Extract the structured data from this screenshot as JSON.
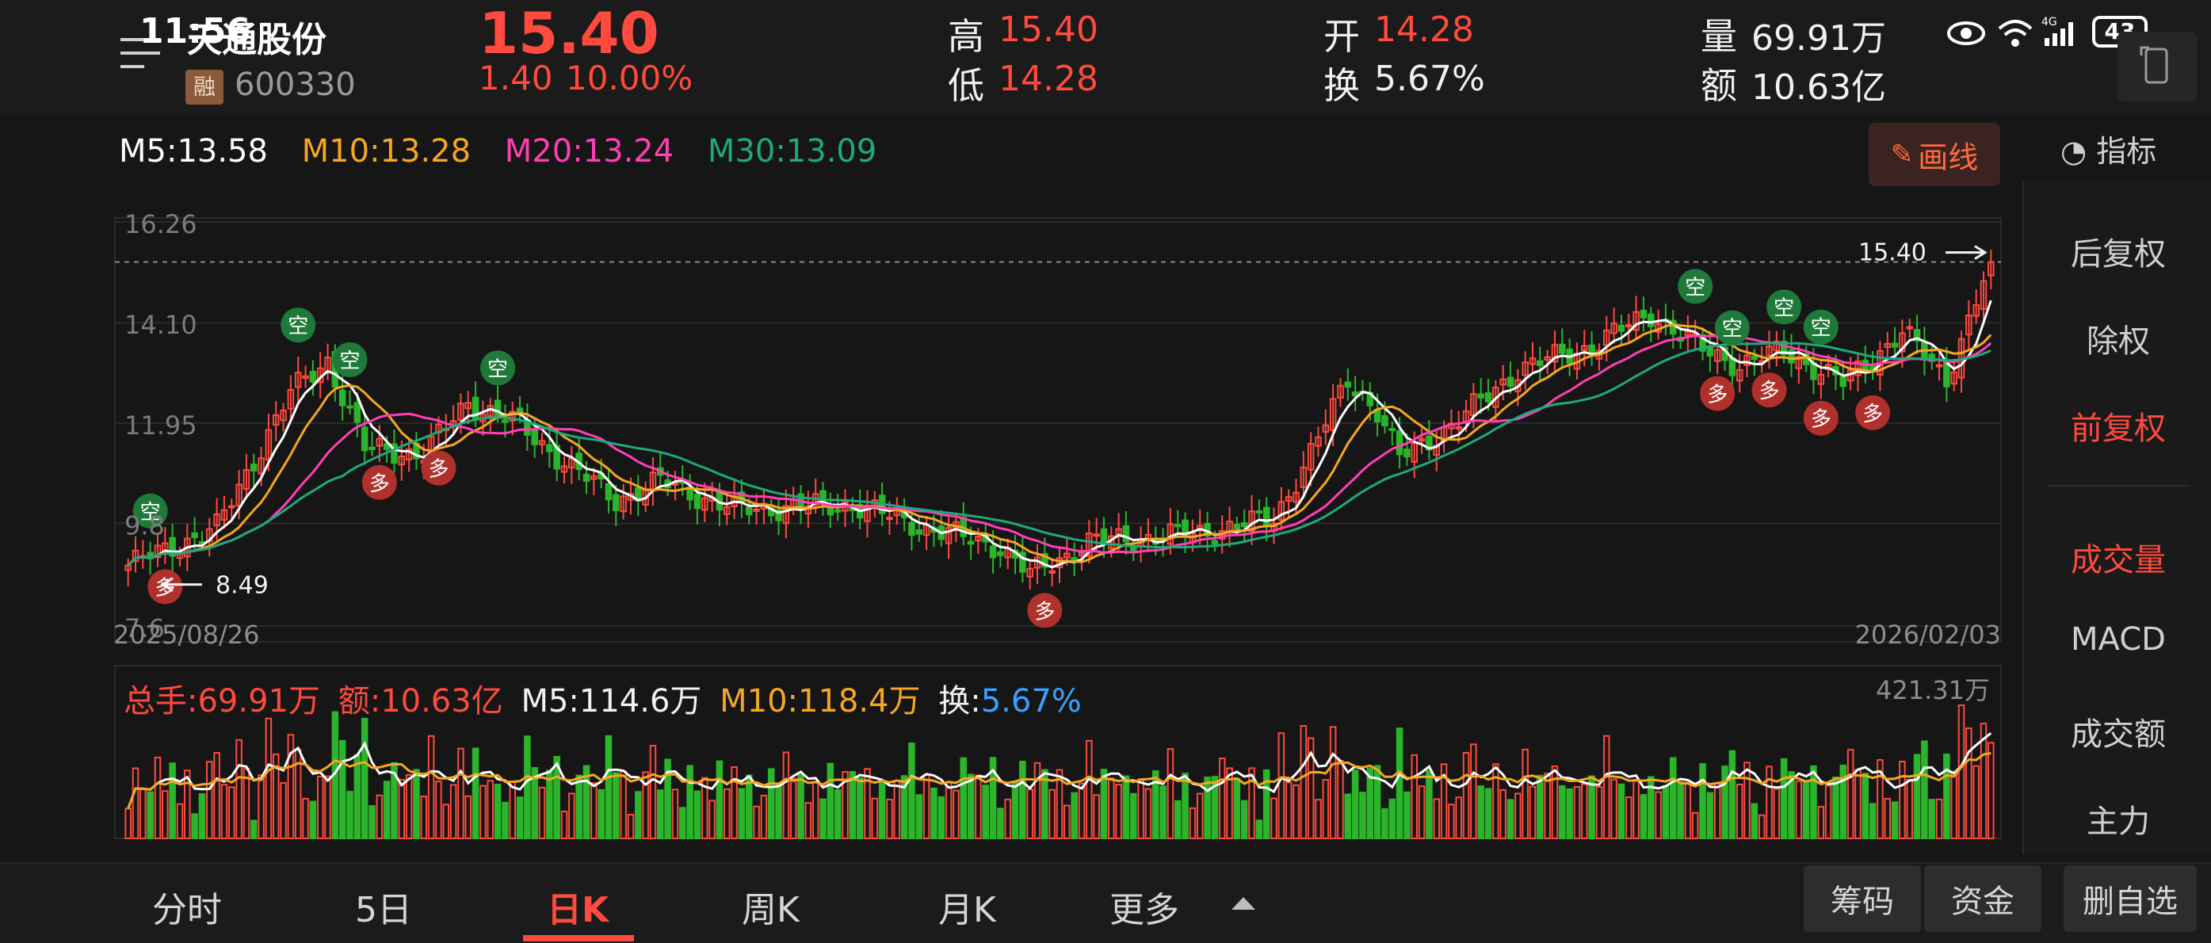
{
  "status_bar": {
    "time": "11:56",
    "battery": "43"
  },
  "stock": {
    "name": "天通股份",
    "margin_badge": "融",
    "code": "600330",
    "price": "15.40",
    "change": "1.40",
    "change_pct": "10.00%"
  },
  "quote": {
    "high_label": "高",
    "high": "15.40",
    "low_label": "低",
    "low": "14.28",
    "open_label": "开",
    "open": "14.28",
    "turnover_label": "换",
    "turnover": "5.67%",
    "volume_label": "量",
    "volume": "69.91万",
    "amount_label": "额",
    "amount": "10.63亿"
  },
  "ma": {
    "m5": "M5:13.58",
    "m10": "M10:13.28",
    "m20": "M20:13.24",
    "m30": "M30:13.09",
    "colors": {
      "m5": "#ffffff",
      "m10": "#f5a623",
      "m20": "#ff3fb4",
      "m30": "#1fa97a"
    }
  },
  "toolbar": {
    "draw_label": "画线",
    "indicator_label": "指标"
  },
  "right_panel": {
    "items": [
      {
        "label": "后复权",
        "active": false
      },
      {
        "label": "除权",
        "active": false
      },
      {
        "label": "前复权",
        "active": true
      },
      {
        "label": "成交量",
        "active": true
      },
      {
        "label": "MACD",
        "active": false
      },
      {
        "label": "成交额",
        "active": false
      },
      {
        "label": "主力",
        "active": false
      }
    ]
  },
  "chart_data": [
    {
      "type": "candlestick",
      "y_ticks": [
        "16.26",
        "14.10",
        "11.95",
        "9.8",
        "7.6"
      ],
      "ylim": [
        7.6,
        16.26
      ],
      "x_start": "2025/08/26",
      "x_end": "2026/02/03",
      "last_price_label": "15.40",
      "low_marker_label": "8.49",
      "signal_long": "多",
      "signal_short": "空",
      "colors": {
        "up": "#ff4a3d",
        "down": "#2bb52b"
      }
    },
    {
      "type": "bar",
      "title": "成交量",
      "total": "总手:69.91万",
      "amount": "额:10.63亿",
      "m5": "M5:114.6万",
      "m10": "M10:118.4万",
      "turnover_label": "换:",
      "turnover": "5.67%",
      "max_label": "421.31万",
      "colors": {
        "up": "#ff4a3d",
        "down": "#2bb52b"
      }
    }
  ],
  "bottom_tabs": {
    "items": [
      {
        "label": "分时",
        "active": false
      },
      {
        "label": "5日",
        "active": false
      },
      {
        "label": "日K",
        "active": true
      },
      {
        "label": "周K",
        "active": false
      },
      {
        "label": "月K",
        "active": false
      },
      {
        "label": "更多",
        "active": false
      }
    ],
    "chips_label": "筹码",
    "funds_label": "资金",
    "remove_watch_label": "删自选"
  }
}
